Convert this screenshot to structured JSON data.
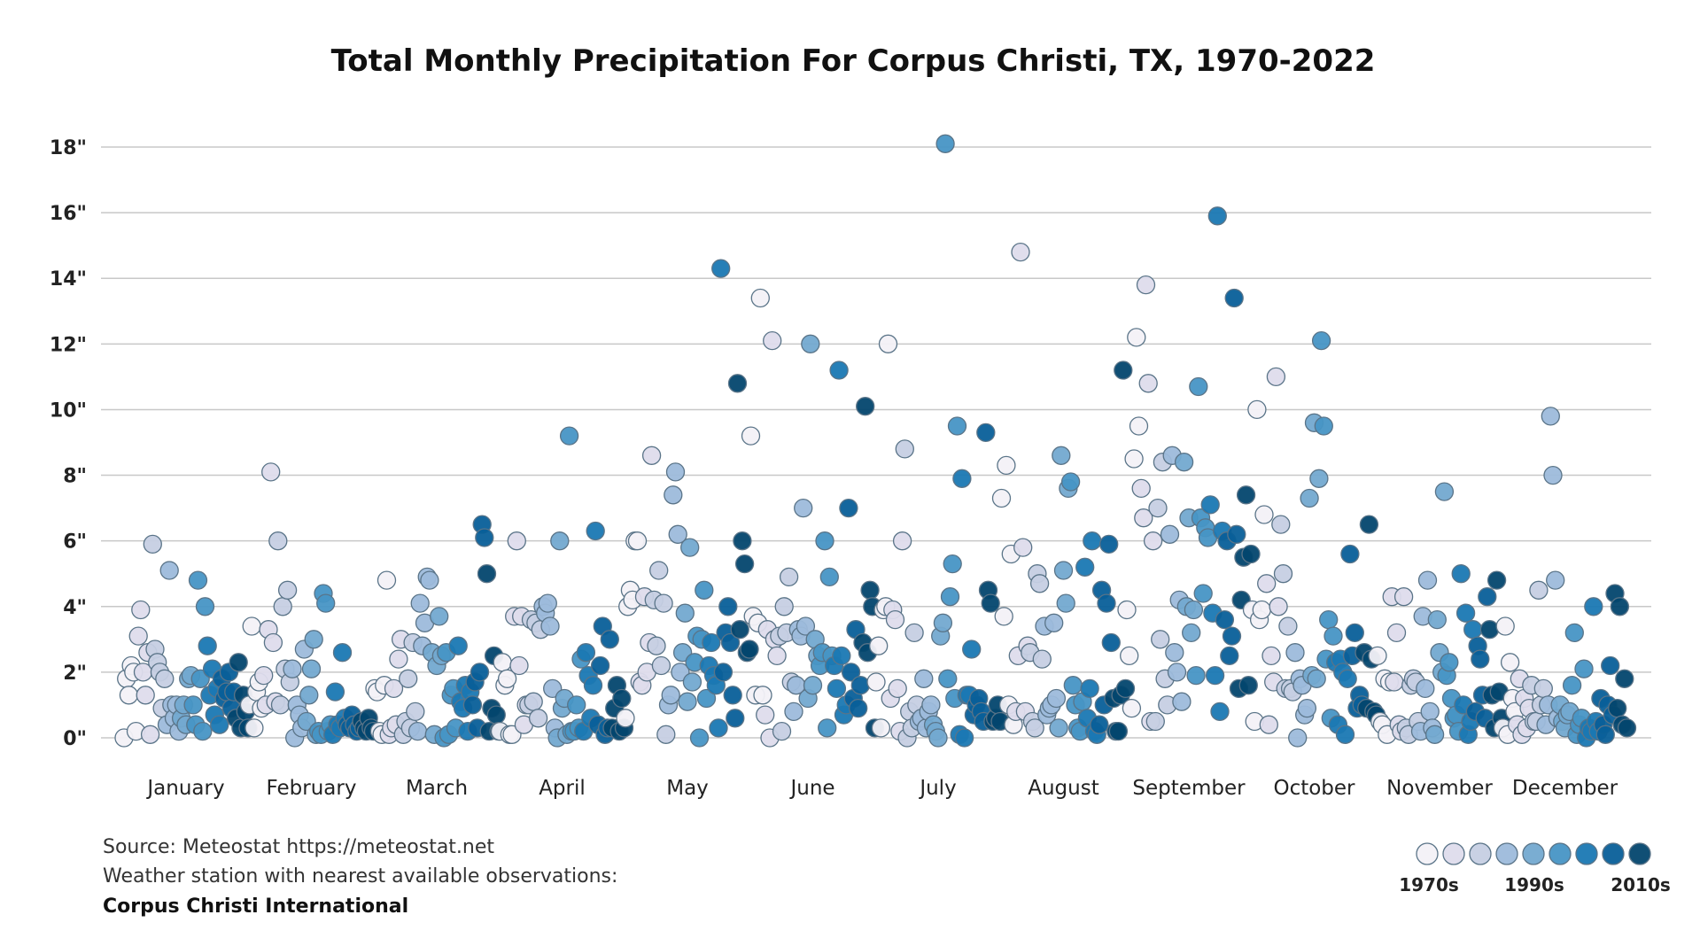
{
  "chart_data": {
    "type": "scatter",
    "title": "Total Monthly Precipitation For Corpus Christi, TX, 1970-2022",
    "xlabel": "",
    "ylabel": "",
    "ylim": [
      0,
      18
    ],
    "yticks": [
      "0\"",
      "2\"",
      "4\"",
      "6\"",
      "8\"",
      "10\"",
      "12\"",
      "14\"",
      "16\"",
      "18\""
    ],
    "ytick_values": [
      0,
      2,
      4,
      6,
      8,
      10,
      12,
      14,
      16,
      18
    ],
    "grid": true,
    "years": [
      1970,
      2022
    ],
    "categories": [
      "January",
      "February",
      "March",
      "April",
      "May",
      "June",
      "July",
      "August",
      "September",
      "October",
      "November",
      "December"
    ],
    "series": [
      {
        "month": "January",
        "values": [
          0.0,
          1.8,
          1.3,
          2.2,
          2.0,
          0.2,
          3.1,
          3.9,
          2.0,
          1.3,
          2.6,
          0.1,
          5.9,
          2.7,
          2.3,
          2.0,
          0.9,
          1.8,
          0.4,
          5.1,
          1.0,
          0.6,
          1.0,
          0.2,
          0.6,
          1.0,
          0.4,
          1.8,
          1.9,
          1.0,
          0.4,
          4.8,
          1.8,
          0.2,
          4.0,
          2.8,
          1.3,
          2.1,
          0.7,
          1.5,
          0.4,
          1.8,
          1.2,
          1.4,
          2.0,
          0.9,
          1.4,
          0.6,
          2.3,
          0.3,
          1.3,
          0.8,
          0.3
        ]
      },
      {
        "month": "February",
        "values": [
          1.0,
          3.4,
          0.3,
          1.4,
          1.7,
          0.9,
          1.9,
          1.0,
          3.3,
          8.1,
          2.9,
          1.1,
          6.0,
          1.0,
          4.0,
          2.1,
          4.5,
          1.7,
          2.1,
          0.0,
          1.0,
          0.7,
          0.3,
          2.7,
          0.5,
          1.3,
          2.1,
          3.0,
          0.1,
          0.2,
          0.1,
          4.4,
          4.1,
          0.2,
          0.4,
          0.1,
          1.4,
          0.4,
          0.3,
          2.6,
          0.6,
          0.4,
          0.3,
          0.7,
          0.4,
          0.2,
          0.3,
          0.5,
          0.3,
          0.2,
          0.6,
          0.3,
          0.2
        ]
      },
      {
        "month": "March",
        "values": [
          1.5,
          1.4,
          0.2,
          0.1,
          1.6,
          4.8,
          0.1,
          0.3,
          1.5,
          0.4,
          2.4,
          3.0,
          0.1,
          0.5,
          1.8,
          0.3,
          2.9,
          0.8,
          0.2,
          4.1,
          2.8,
          3.5,
          4.9,
          4.8,
          2.6,
          0.1,
          2.2,
          3.7,
          2.5,
          0.0,
          2.6,
          0.1,
          1.3,
          1.5,
          0.3,
          2.8,
          1.1,
          0.9,
          1.6,
          0.2,
          1.4,
          1.0,
          1.7,
          0.3,
          2.0,
          6.5,
          6.1,
          5.0,
          0.2,
          0.9,
          2.5,
          0.7,
          0.2
        ]
      },
      {
        "month": "April",
        "values": [
          0.2,
          2.3,
          1.6,
          1.8,
          0.1,
          0.1,
          3.7,
          6.0,
          2.2,
          3.7,
          0.4,
          1.0,
          1.0,
          3.6,
          1.1,
          3.5,
          0.6,
          3.3,
          4.0,
          3.8,
          4.1,
          3.4,
          1.5,
          0.3,
          0.0,
          6.0,
          0.9,
          1.2,
          0.1,
          9.2,
          0.2,
          0.2,
          1.0,
          0.3,
          2.4,
          0.2,
          2.6,
          1.9,
          0.6,
          1.6,
          6.3,
          0.4,
          2.2,
          3.4,
          0.1,
          0.3,
          3.0,
          0.3,
          0.9,
          1.6,
          0.2,
          1.2,
          0.3
        ]
      },
      {
        "month": "May",
        "values": [
          0.6,
          4.0,
          4.5,
          4.2,
          6.0,
          6.0,
          1.7,
          1.6,
          4.3,
          2.0,
          2.9,
          8.6,
          4.2,
          2.8,
          5.1,
          2.2,
          4.1,
          0.1,
          1.0,
          1.3,
          7.4,
          8.1,
          6.2,
          2.0,
          2.6,
          3.8,
          1.1,
          5.8,
          1.7,
          2.3,
          3.1,
          0.0,
          3.0,
          4.5,
          1.2,
          2.2,
          2.9,
          1.9,
          1.6,
          0.3,
          14.3,
          2.0,
          3.2,
          4.0,
          2.9,
          1.3,
          0.6,
          10.8,
          3.3,
          6.0,
          5.3,
          2.6,
          2.7
        ]
      },
      {
        "month": "June",
        "values": [
          9.2,
          3.7,
          1.3,
          3.5,
          13.4,
          1.3,
          0.7,
          3.3,
          0.0,
          12.1,
          3.0,
          2.5,
          3.1,
          0.2,
          4.0,
          3.2,
          4.9,
          1.7,
          0.8,
          1.6,
          3.3,
          3.1,
          7.0,
          3.4,
          1.2,
          12.0,
          1.6,
          3.0,
          2.5,
          2.2,
          2.6,
          6.0,
          0.3,
          4.9,
          2.5,
          2.2,
          1.5,
          11.2,
          2.5,
          0.7,
          1.0,
          7.0,
          2.0,
          1.2,
          3.3,
          0.9,
          1.6,
          2.9,
          10.1,
          2.6,
          4.5,
          4.0,
          0.3
        ]
      },
      {
        "month": "July",
        "values": [
          1.7,
          2.8,
          0.3,
          3.9,
          4.0,
          12.0,
          1.2,
          3.9,
          3.6,
          1.5,
          0.2,
          6.0,
          8.8,
          0.0,
          0.8,
          0.3,
          3.2,
          1.0,
          0.5,
          0.6,
          1.8,
          0.3,
          0.8,
          1.0,
          0.4,
          0.2,
          0.0,
          3.1,
          3.5,
          18.1,
          1.8,
          4.3,
          5.3,
          1.2,
          9.5,
          0.1,
          7.9,
          0.0,
          1.3,
          1.3,
          2.7,
          0.7,
          1.0,
          1.2,
          0.8,
          0.5,
          9.3,
          4.5,
          4.1,
          0.5,
          0.6,
          1.0,
          0.5
        ]
      },
      {
        "month": "August",
        "values": [
          7.3,
          3.7,
          8.3,
          1.0,
          5.6,
          0.4,
          0.8,
          2.5,
          14.8,
          5.8,
          0.8,
          2.8,
          2.6,
          0.5,
          0.3,
          5.0,
          4.7,
          2.4,
          3.4,
          0.7,
          0.9,
          1.0,
          3.5,
          1.2,
          0.3,
          8.6,
          5.1,
          4.1,
          7.6,
          7.8,
          1.6,
          1.0,
          0.3,
          0.2,
          1.1,
          5.2,
          0.6,
          1.5,
          6.0,
          0.2,
          0.1,
          0.4,
          4.5,
          1.0,
          4.1,
          5.9,
          2.9,
          1.2,
          0.2,
          0.2,
          1.3,
          11.2,
          1.5
        ]
      },
      {
        "month": "September",
        "values": [
          3.9,
          2.5,
          0.9,
          8.5,
          12.2,
          9.5,
          7.6,
          6.7,
          13.8,
          10.8,
          0.5,
          6.0,
          0.5,
          7.0,
          3.0,
          8.4,
          1.8,
          1.0,
          6.2,
          8.6,
          2.6,
          2.0,
          4.2,
          1.1,
          8.4,
          4.0,
          6.7,
          3.2,
          3.9,
          1.9,
          10.7,
          6.7,
          4.4,
          6.4,
          6.1,
          7.1,
          3.8,
          1.9,
          15.9,
          0.8,
          6.3,
          3.6,
          6.0,
          2.5,
          3.1,
          13.4,
          6.2,
          1.5,
          4.2,
          5.5,
          7.4,
          1.6,
          5.6
        ]
      },
      {
        "month": "October",
        "values": [
          3.9,
          0.5,
          10.0,
          3.6,
          3.9,
          6.8,
          4.7,
          0.4,
          2.5,
          1.7,
          11.0,
          4.0,
          6.5,
          5.0,
          1.5,
          3.4,
          1.5,
          1.4,
          2.6,
          0.0,
          1.8,
          1.6,
          0.7,
          0.9,
          7.3,
          1.9,
          9.6,
          1.8,
          7.9,
          12.1,
          9.5,
          2.4,
          3.6,
          0.6,
          3.1,
          2.3,
          0.4,
          2.4,
          2.0,
          0.1,
          1.8,
          5.6,
          2.5,
          3.2,
          0.9,
          1.3,
          1.0,
          2.6,
          0.9,
          6.5,
          2.4,
          0.8,
          0.7
        ]
      },
      {
        "month": "November",
        "values": [
          2.5,
          0.5,
          0.4,
          1.8,
          0.1,
          1.7,
          4.3,
          1.7,
          3.2,
          0.4,
          0.2,
          4.3,
          0.3,
          0.1,
          1.6,
          1.8,
          1.7,
          0.5,
          0.2,
          3.7,
          1.5,
          4.8,
          0.8,
          0.3,
          0.1,
          3.6,
          2.6,
          2.0,
          7.5,
          1.9,
          2.3,
          1.2,
          0.6,
          0.7,
          0.2,
          5.0,
          1.0,
          3.8,
          0.1,
          0.5,
          3.3,
          0.8,
          2.8,
          2.4,
          1.3,
          0.6,
          4.3,
          3.3,
          1.3,
          0.3,
          4.8,
          1.4,
          0.6
        ]
      },
      {
        "month": "December",
        "values": [
          0.3,
          3.4,
          0.1,
          2.3,
          1.2,
          0.8,
          0.4,
          1.8,
          0.1,
          1.2,
          0.3,
          0.9,
          1.6,
          0.5,
          0.5,
          4.5,
          1.0,
          1.5,
          0.4,
          1.0,
          9.8,
          8.0,
          4.8,
          0.6,
          1.0,
          0.5,
          0.3,
          0.7,
          0.8,
          1.6,
          3.2,
          0.1,
          0.4,
          0.6,
          2.1,
          0.0,
          0.3,
          0.2,
          4.0,
          0.5,
          0.2,
          1.2,
          0.4,
          0.1,
          1.0,
          2.2,
          0.7,
          4.4,
          0.9,
          4.0,
          0.4,
          1.8,
          0.3
        ]
      }
    ],
    "color_scale": [
      "#f3f1f7",
      "#dedcec",
      "#c6cfe3",
      "#9dbbdb",
      "#73a9d0",
      "#4795c5",
      "#1a78b3",
      "#085f99",
      "#03466e"
    ],
    "legend": {
      "position": "bottom-right",
      "labels": [
        "1970s",
        "1990s",
        "2010s"
      ]
    }
  },
  "source": {
    "line1": "Source: Meteostat https://meteostat.net",
    "line2": "Weather station with nearest available observations:",
    "line3": "Corpus Christi International"
  }
}
